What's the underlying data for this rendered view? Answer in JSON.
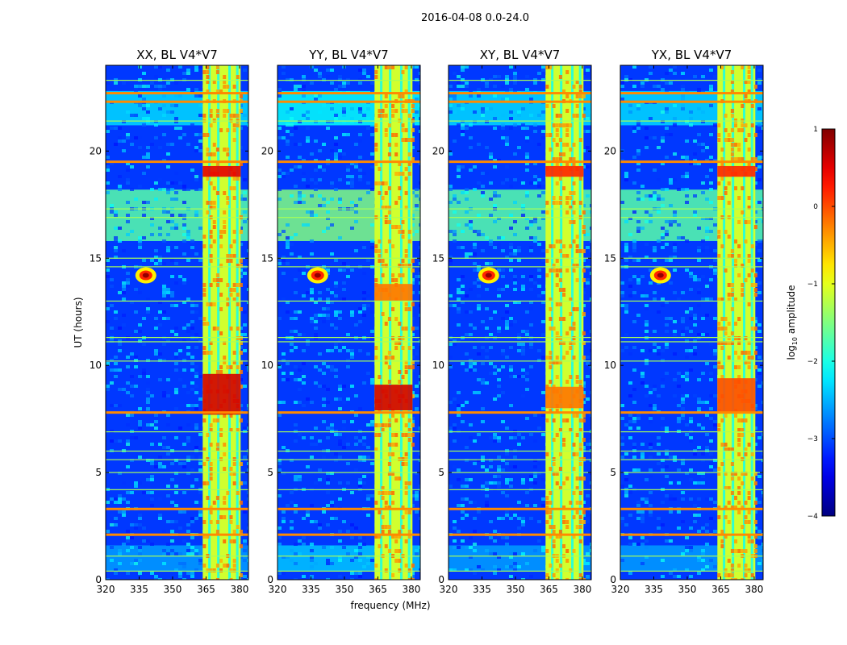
{
  "figure": {
    "suptitle": "2016-04-08 0.0-24.0",
    "xlabel": "frequency (MHz)",
    "ylabel": "UT (hours)",
    "colorbar_label_prefix": "log",
    "colorbar_label_sub": "10",
    "colorbar_label_suffix": " amplitude"
  },
  "chart_data": {
    "type": "heatmap",
    "colormap": "jet",
    "xlim": [
      320,
      384
    ],
    "ylim": [
      0,
      24
    ],
    "xticks": [
      320,
      335,
      350,
      365,
      380
    ],
    "yticks": [
      0,
      5,
      10,
      15,
      20
    ],
    "clim": [
      -4,
      1
    ],
    "colorbar_ticks": [
      1,
      0,
      -1,
      -2,
      -3,
      -4
    ],
    "colorbar_tick_labels": [
      "1",
      "0",
      "−1",
      "−2",
      "−3",
      "−4"
    ],
    "panels": [
      {
        "title": "XX, BL V4*V7",
        "bursts": [
          {
            "t0": 7.7,
            "t1": 9.6,
            "v": 0.6
          },
          {
            "t0": 18.8,
            "t1": 19.3,
            "v": 0.5
          }
        ]
      },
      {
        "title": "YY, BL V4*V7",
        "bursts": [
          {
            "t0": 7.9,
            "t1": 9.1,
            "v": 0.6
          },
          {
            "t0": 13.0,
            "t1": 13.8,
            "v": -0.2
          }
        ]
      },
      {
        "title": "XY, BL V4*V7",
        "bursts": [
          {
            "t0": 18.8,
            "t1": 19.3,
            "v": 0.2
          },
          {
            "t0": 8.0,
            "t1": 9.0,
            "v": -0.2
          }
        ]
      },
      {
        "title": "YX, BL V4*V7",
        "bursts": [
          {
            "t0": 7.8,
            "t1": 9.4,
            "v": 0.0
          },
          {
            "t0": 18.8,
            "t1": 19.3,
            "v": 0.2
          }
        ]
      }
    ],
    "rfi_band": {
      "f0": 363.5,
      "f1": 380.5,
      "level": -1.1,
      "stripes": [
        366.5,
        370.5,
        375.5,
        379.0
      ]
    },
    "horizontal_rfi_hours": [
      0.4,
      1.1,
      2.1,
      3.3,
      4.2,
      5.0,
      5.6,
      6.0,
      6.9,
      7.8,
      10.2,
      11.1,
      11.3,
      13.0,
      14.6,
      15.0,
      16.9,
      17.3,
      19.5,
      21.4,
      22.3,
      22.7,
      23.3
    ],
    "strong_rfi_hours": [
      2.1,
      3.3,
      7.8,
      19.5,
      22.3,
      22.7
    ],
    "broadband_enhancements": [
      {
        "t0": 15.8,
        "t1": 18.2,
        "v": -1.7
      },
      {
        "t0": 21.2,
        "t1": 22.8,
        "v": -2.3
      },
      {
        "t0": 0.4,
        "t1": 1.6,
        "v": -2.6
      }
    ],
    "point_source": {
      "freq": 338,
      "time": 14.2,
      "v": 0.9
    }
  }
}
